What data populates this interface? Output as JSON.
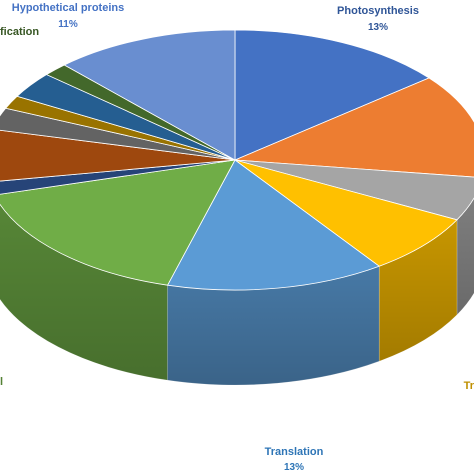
{
  "chart_data": {
    "type": "pie",
    "style": "3d",
    "start_angle_deg": 0,
    "direction": "clockwise",
    "slices": [
      {
        "label": "Photosynthesis",
        "percent_label": "13%",
        "value": 13,
        "color": "#4472C4",
        "label_color": "#2F5597"
      },
      {
        "label": "",
        "percent_label": "",
        "value": 12,
        "color": "#ED7D31",
        "label_color": "#C55A11"
      },
      {
        "label": "",
        "percent_label": "",
        "value": 5,
        "color": "#A5A5A5",
        "label_color": "#7F7F7F"
      },
      {
        "label": "Tr",
        "percent_label": "",
        "value": 7,
        "color": "#FFC000",
        "label_color": "#BF8F00"
      },
      {
        "label": "Translation",
        "percent_label": "13%",
        "value": 13,
        "color": "#5B9BD5",
        "label_color": "#2E75B6"
      },
      {
        "label": "l",
        "percent_label": "",
        "value": 15,
        "color": "#70AD47",
        "label_color": "#548235"
      },
      {
        "label": "",
        "percent_label": "",
        "value": 1.5,
        "color": "#264478",
        "label_color": "#264478"
      },
      {
        "label": "",
        "percent_label": "",
        "value": 6,
        "color": "#9E480E",
        "label_color": "#9E480E"
      },
      {
        "label": "",
        "percent_label": "",
        "value": 2.5,
        "color": "#636363",
        "label_color": "#636363"
      },
      {
        "label": "",
        "percent_label": "",
        "value": 1.5,
        "color": "#997300",
        "label_color": "#997300"
      },
      {
        "label": "",
        "percent_label": "",
        "value": 3,
        "color": "#255E91",
        "label_color": "#255E91"
      },
      {
        "label": "fication",
        "percent_label": "",
        "value": 1.5,
        "color": "#43682B",
        "label_color": "#375623"
      },
      {
        "label": "Hypothetical proteins",
        "percent_label": "11%",
        "value": 11,
        "color": "#698ED0",
        "label_color": "#4472C4"
      }
    ]
  }
}
